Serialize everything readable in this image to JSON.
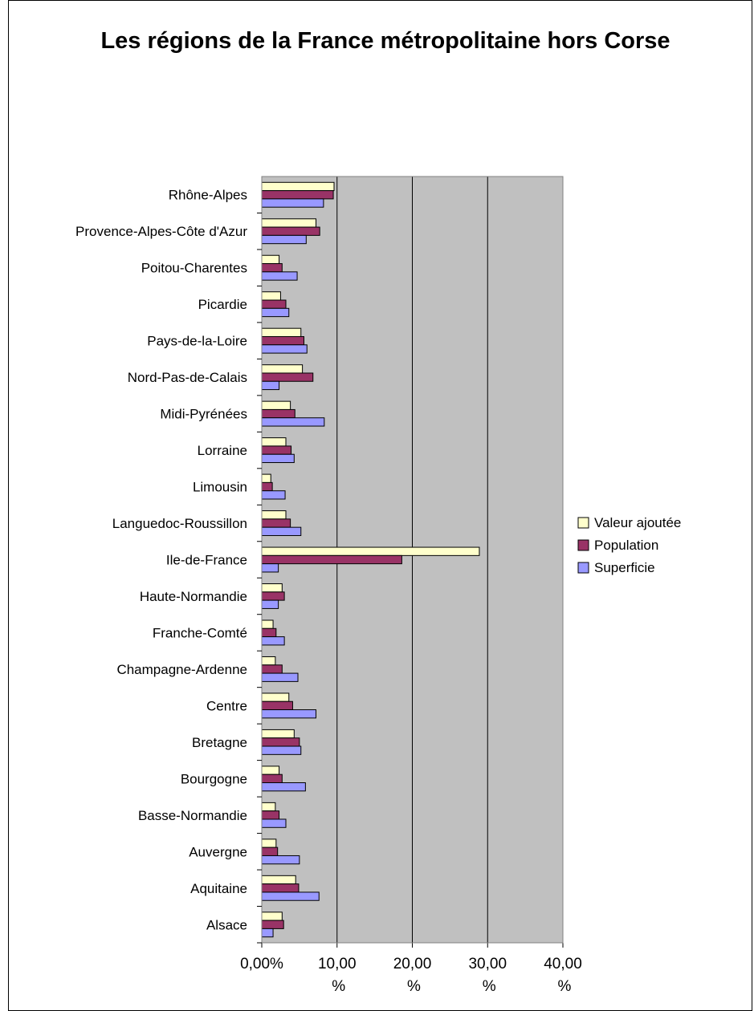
{
  "chart_data": {
    "type": "bar",
    "orientation": "horizontal",
    "title": "Les régions de la France métropolitaine hors Corse",
    "xlabel": "",
    "ylabel": "",
    "xlim": [
      0,
      40
    ],
    "x_ticks": [
      "0,00%",
      "10,00 %",
      "20,00 %",
      "30,00 %",
      "40,00 %"
    ],
    "grid": true,
    "plot_background": "#C0C0C0",
    "legend_position": "right",
    "categories": [
      "Alsace",
      "Aquitaine",
      "Auvergne",
      "Basse-Normandie",
      "Bourgogne",
      "Bretagne",
      "Centre",
      "Champagne-Ardenne",
      "Franche-Comté",
      "Haute-Normandie",
      "Ile-de-France",
      "Languedoc-Roussillon",
      "Limousin",
      "Lorraine",
      "Midi-Pyrénées",
      "Nord-Pas-de-Calais",
      "Pays-de-la-Loire",
      "Picardie",
      "Poitou-Charentes",
      "Provence-Alpes-Côte d'Azur",
      "Rhône-Alpes"
    ],
    "series": [
      {
        "name": "Valeur ajoutée",
        "color": "#FFFFCC",
        "values": [
          2.7,
          4.5,
          1.9,
          1.8,
          2.3,
          4.3,
          3.6,
          1.8,
          1.5,
          2.7,
          28.9,
          3.2,
          1.2,
          3.2,
          3.8,
          5.4,
          5.2,
          2.5,
          2.3,
          7.2,
          9.6
        ]
      },
      {
        "name": "Population",
        "color": "#993366",
        "values": [
          2.9,
          4.9,
          2.1,
          2.3,
          2.7,
          5.0,
          4.1,
          2.7,
          1.9,
          3.0,
          18.6,
          3.8,
          1.4,
          3.9,
          4.4,
          6.8,
          5.6,
          3.2,
          2.7,
          7.7,
          9.5
        ]
      },
      {
        "name": "Superficie",
        "color": "#9999FF",
        "values": [
          1.5,
          7.6,
          5.0,
          3.2,
          5.8,
          5.2,
          7.2,
          4.8,
          3.0,
          2.2,
          2.2,
          5.2,
          3.1,
          4.3,
          8.3,
          2.3,
          6.0,
          3.6,
          4.7,
          5.9,
          8.2
        ]
      }
    ]
  }
}
